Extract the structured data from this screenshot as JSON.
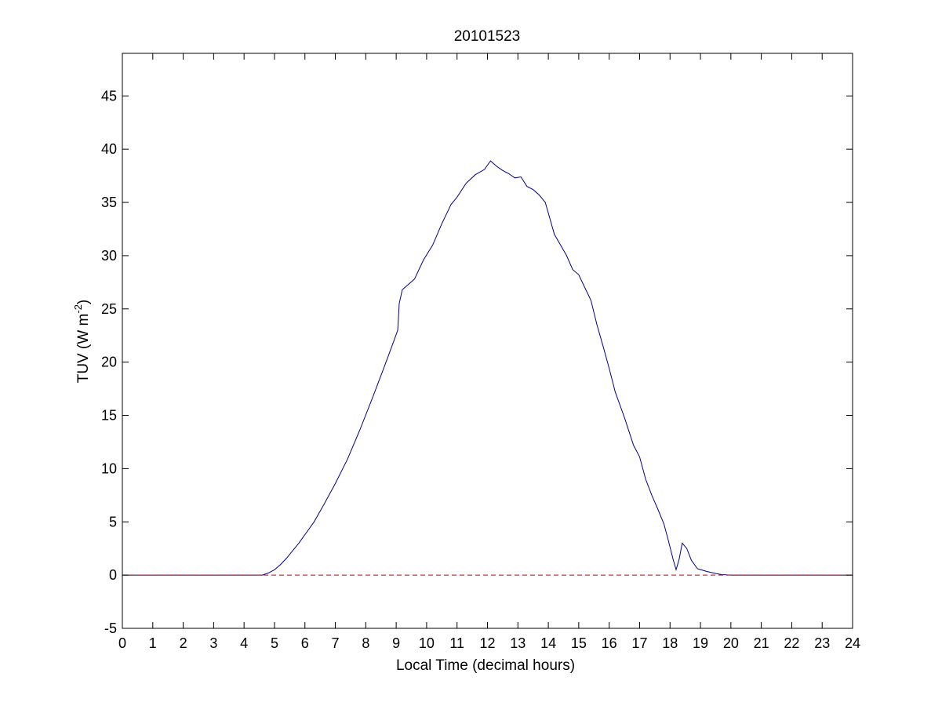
{
  "chart_data": {
    "type": "line",
    "title": "20101523",
    "xlabel": "Local Time (decimal hours)",
    "ylabel": "TUV (W m",
    "ylabel_sup": "-2",
    "ylabel_close": ")",
    "xlim": [
      0,
      24
    ],
    "ylim": [
      -5,
      49
    ],
    "x_ticks": [
      "0",
      "1",
      "2",
      "3",
      "4",
      "5",
      "6",
      "7",
      "8",
      "9",
      "10",
      "11",
      "12",
      "13",
      "14",
      "15",
      "16",
      "17",
      "18",
      "19",
      "20",
      "21",
      "22",
      "23",
      "24"
    ],
    "y_ticks": [
      "-5",
      "0",
      "5",
      "10",
      "15",
      "20",
      "25",
      "30",
      "35",
      "40",
      "45"
    ],
    "grid": false,
    "colors": {
      "series": "#00008b",
      "reference": "#cc0000",
      "axes": "#000000"
    },
    "series": [
      {
        "style": "solid",
        "x": [
          0,
          4.0,
          4.6,
          4.8,
          5.0,
          5.2,
          5.4,
          5.6,
          5.8,
          6.0,
          6.3,
          6.6,
          7.0,
          7.4,
          7.8,
          8.2,
          8.6,
          8.9,
          9.05,
          9.1,
          9.2,
          9.4,
          9.6,
          9.9,
          10.2,
          10.5,
          10.8,
          11.0,
          11.3,
          11.6,
          11.9,
          12.1,
          12.3,
          12.5,
          12.7,
          12.9,
          13.1,
          13.3,
          13.5,
          13.7,
          13.9,
          14.0,
          14.2,
          14.4,
          14.6,
          14.8,
          15.0,
          15.2,
          15.4,
          15.6,
          15.8,
          16.0,
          16.2,
          16.5,
          16.8,
          17.0,
          17.2,
          17.4,
          17.6,
          17.8,
          17.95,
          18.1,
          18.2,
          18.3,
          18.4,
          18.55,
          18.7,
          18.9,
          19.2,
          19.5,
          19.7,
          20.0,
          22.0,
          24.0
        ],
        "y": [
          0,
          0,
          0,
          0.2,
          0.5,
          1.0,
          1.6,
          2.3,
          3.0,
          3.8,
          5.0,
          6.5,
          8.6,
          10.9,
          13.6,
          16.5,
          19.5,
          21.8,
          23.0,
          25.5,
          26.8,
          27.3,
          27.8,
          29.6,
          31.0,
          33.0,
          34.8,
          35.5,
          36.8,
          37.6,
          38.1,
          38.9,
          38.4,
          38.0,
          37.7,
          37.3,
          37.4,
          36.5,
          36.2,
          35.7,
          35.0,
          34.0,
          32.0,
          31.0,
          30.0,
          28.7,
          28.2,
          27.0,
          25.8,
          23.5,
          21.5,
          19.4,
          17.2,
          14.8,
          12.2,
          11.1,
          9.0,
          7.5,
          6.2,
          4.8,
          3.2,
          1.5,
          0.5,
          1.5,
          3.0,
          2.5,
          1.4,
          0.6,
          0.35,
          0.15,
          0.05,
          0,
          0,
          0
        ]
      },
      {
        "style": "dashed",
        "x": [
          0,
          24
        ],
        "y": [
          0,
          0
        ]
      }
    ]
  }
}
